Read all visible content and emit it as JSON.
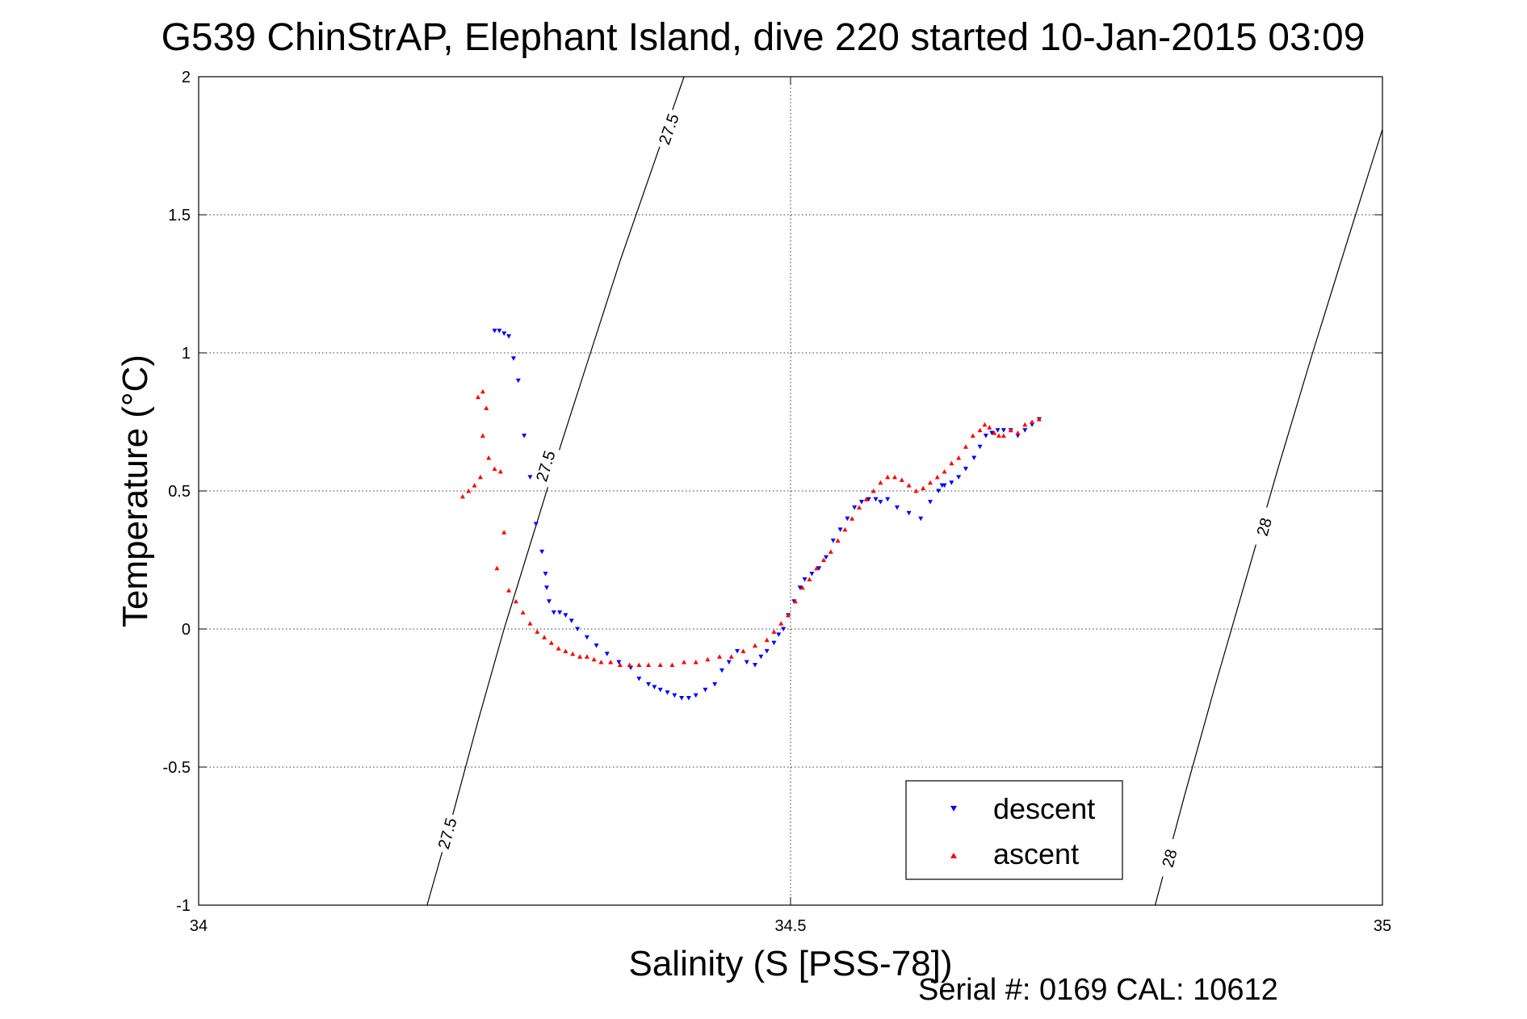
{
  "chart_data": {
    "type": "scatter",
    "title": "G539 ChinStrAP, Elephant Island, dive 220 started 10-Jan-2015 03:09",
    "xlabel": "Salinity (S [PSS-78])",
    "ylabel": "Temperature (°C)",
    "xlim": [
      34,
      35
    ],
    "ylim": [
      -1,
      2
    ],
    "xticks": [
      "34",
      "34.5",
      "35"
    ],
    "yticks": [
      "-1",
      "-0.5",
      "0",
      "0.5",
      "1",
      "1.5",
      "2"
    ],
    "grid": true,
    "legend_position": "bottom-right",
    "annotation": "Serial #: 0169 CAL: 10612",
    "series": [
      {
        "name": "descent",
        "color": "#0000ff",
        "marker": "triangle-down",
        "x": [
          34.25,
          34.254,
          34.258,
          34.262,
          34.266,
          34.27,
          34.275,
          34.28,
          34.285,
          34.29,
          34.293,
          34.294,
          34.296,
          34.3,
          34.305,
          34.31,
          34.315,
          34.32,
          34.328,
          34.336,
          34.345,
          34.355,
          34.365,
          34.372,
          34.38,
          34.385,
          34.39,
          34.396,
          34.402,
          34.408,
          34.414,
          34.42,
          34.428,
          34.436,
          34.442,
          34.448,
          34.455,
          34.463,
          34.47,
          34.475,
          34.48,
          34.486,
          34.49,
          34.494,
          34.498,
          34.503,
          34.508,
          34.512,
          34.518,
          34.524,
          34.53,
          34.536,
          34.542,
          34.548,
          34.554,
          34.56,
          34.566,
          34.572,
          34.576,
          34.582,
          34.59,
          34.6,
          34.61,
          34.618,
          34.625,
          34.628,
          34.63,
          34.636,
          34.642,
          34.648,
          34.655,
          34.66,
          34.665,
          34.67,
          34.675,
          34.68,
          34.686,
          34.692,
          34.698,
          34.704,
          34.71
        ],
        "y": [
          1.08,
          1.08,
          1.07,
          1.06,
          0.98,
          0.9,
          0.7,
          0.55,
          0.38,
          0.28,
          0.2,
          0.15,
          0.1,
          0.06,
          0.06,
          0.05,
          0.03,
          0.0,
          -0.03,
          -0.06,
          -0.09,
          -0.12,
          -0.14,
          -0.18,
          -0.2,
          -0.21,
          -0.22,
          -0.23,
          -0.24,
          -0.25,
          -0.25,
          -0.24,
          -0.22,
          -0.2,
          -0.15,
          -0.12,
          -0.08,
          -0.12,
          -0.13,
          -0.1,
          -0.08,
          -0.05,
          -0.02,
          0.0,
          0.05,
          0.1,
          0.15,
          0.18,
          0.2,
          0.22,
          0.26,
          0.32,
          0.36,
          0.4,
          0.44,
          0.46,
          0.47,
          0.47,
          0.46,
          0.47,
          0.44,
          0.42,
          0.4,
          0.46,
          0.5,
          0.52,
          0.52,
          0.53,
          0.55,
          0.58,
          0.62,
          0.66,
          0.7,
          0.71,
          0.72,
          0.72,
          0.72,
          0.7,
          0.72,
          0.74,
          0.76
        ]
      },
      {
        "name": "ascent",
        "color": "#ff0000",
        "marker": "triangle-up",
        "x": [
          34.223,
          34.228,
          34.233,
          34.238,
          34.243,
          34.24,
          34.236,
          34.24,
          34.245,
          34.25,
          34.255,
          34.258,
          34.252,
          34.262,
          34.268,
          34.274,
          34.28,
          34.286,
          34.292,
          34.298,
          34.304,
          34.31,
          34.316,
          34.322,
          34.328,
          34.334,
          34.34,
          34.348,
          34.356,
          34.364,
          34.372,
          34.38,
          34.39,
          34.4,
          34.41,
          34.42,
          34.43,
          34.44,
          34.45,
          34.46,
          34.47,
          34.48,
          34.486,
          34.492,
          34.498,
          34.504,
          34.51,
          34.516,
          34.522,
          34.528,
          34.534,
          34.54,
          34.546,
          34.552,
          34.558,
          34.564,
          34.57,
          34.576,
          34.582,
          34.588,
          34.594,
          34.6,
          34.606,
          34.612,
          34.618,
          34.624,
          34.63,
          34.636,
          34.642,
          34.648,
          34.654,
          34.66,
          34.664,
          34.668,
          34.672,
          34.676,
          34.68,
          34.686,
          34.692,
          34.698,
          34.704,
          34.71
        ],
        "y": [
          0.48,
          0.5,
          0.52,
          0.55,
          0.8,
          0.86,
          0.84,
          0.7,
          0.62,
          0.58,
          0.57,
          0.35,
          0.22,
          0.14,
          0.1,
          0.06,
          0.02,
          -0.01,
          -0.03,
          -0.05,
          -0.07,
          -0.08,
          -0.09,
          -0.1,
          -0.1,
          -0.11,
          -0.12,
          -0.12,
          -0.13,
          -0.13,
          -0.13,
          -0.13,
          -0.13,
          -0.13,
          -0.12,
          -0.12,
          -0.11,
          -0.1,
          -0.1,
          -0.08,
          -0.06,
          -0.04,
          -0.01,
          0.02,
          0.05,
          0.1,
          0.15,
          0.18,
          0.22,
          0.25,
          0.28,
          0.32,
          0.36,
          0.4,
          0.44,
          0.47,
          0.5,
          0.53,
          0.55,
          0.55,
          0.54,
          0.52,
          0.5,
          0.51,
          0.53,
          0.55,
          0.57,
          0.6,
          0.62,
          0.66,
          0.7,
          0.72,
          0.74,
          0.73,
          0.71,
          0.7,
          0.7,
          0.72,
          0.71,
          0.74,
          0.75,
          0.76
        ]
      }
    ],
    "isopycnals": [
      {
        "label": "27.5",
        "x": [
          34.193,
          34.215,
          34.236,
          34.258,
          34.282,
          34.306,
          34.331,
          34.356,
          34.383,
          34.41
        ],
        "y": [
          -1,
          -0.667,
          -0.333,
          0,
          0.333,
          0.667,
          1,
          1.333,
          1.667,
          2
        ],
        "labels_at": [
          {
            "x": 34.21,
            "y": -0.74
          },
          {
            "x": 34.293,
            "y": 0.59
          },
          {
            "x": 34.397,
            "y": 1.81
          }
        ]
      },
      {
        "label": "28",
        "x": [
          34.808,
          34.833,
          34.859,
          34.886,
          34.913,
          34.941,
          34.97,
          35.0
        ],
        "y": [
          -1,
          -0.6,
          -0.2,
          0.2,
          0.6,
          1.0,
          1.4,
          1.81
        ],
        "labels_at": [
          {
            "x": 34.82,
            "y": -0.83
          },
          {
            "x": 34.9,
            "y": 0.37
          }
        ]
      }
    ]
  }
}
